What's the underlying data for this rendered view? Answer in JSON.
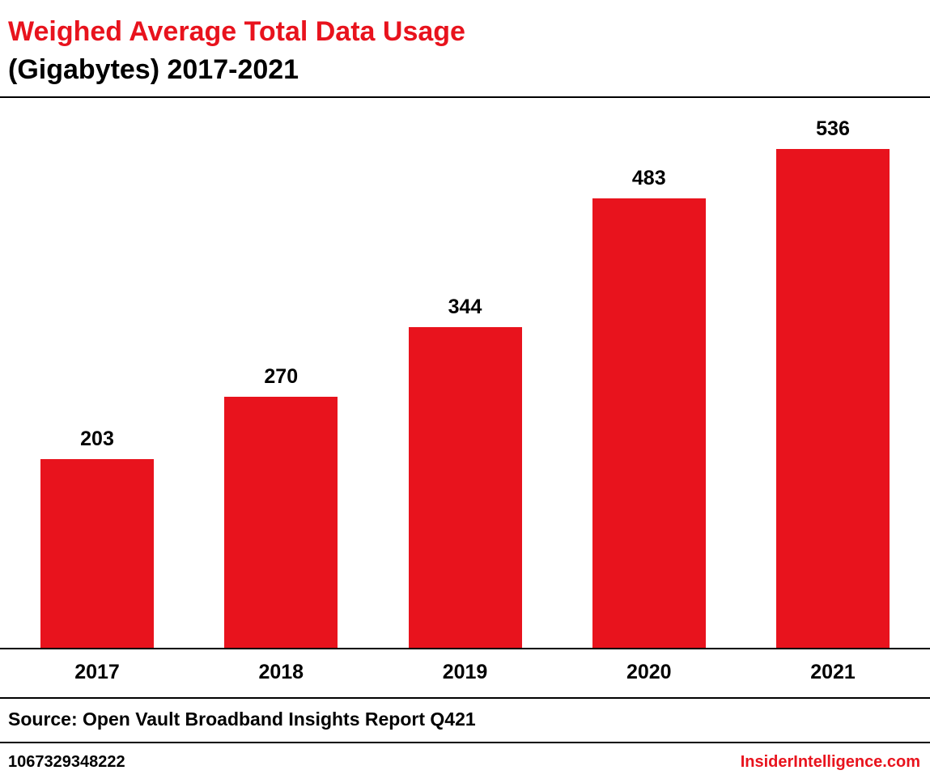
{
  "header": {
    "title_line1": "Weighed Average Total Data Usage",
    "title_line2": "(Gigabytes) 2017-2021"
  },
  "chart_data": {
    "type": "bar",
    "title": "Weighed Average Total Data Usage (Gigabytes) 2017-2021",
    "categories": [
      "2017",
      "2018",
      "2019",
      "2020",
      "2021"
    ],
    "values": [
      203,
      270,
      344,
      483,
      536
    ],
    "xlabel": "",
    "ylabel": "",
    "ylim": [
      0,
      590
    ],
    "grid": false,
    "legend": "none",
    "data_labels": true,
    "bar_color": "#e8131d"
  },
  "source": {
    "text": "Source: Open Vault Broadband Insights Report Q421"
  },
  "footer": {
    "id_text": "1067329348222",
    "brand_text": "InsiderIntelligence.com",
    "brand_color": "#e8131d"
  }
}
